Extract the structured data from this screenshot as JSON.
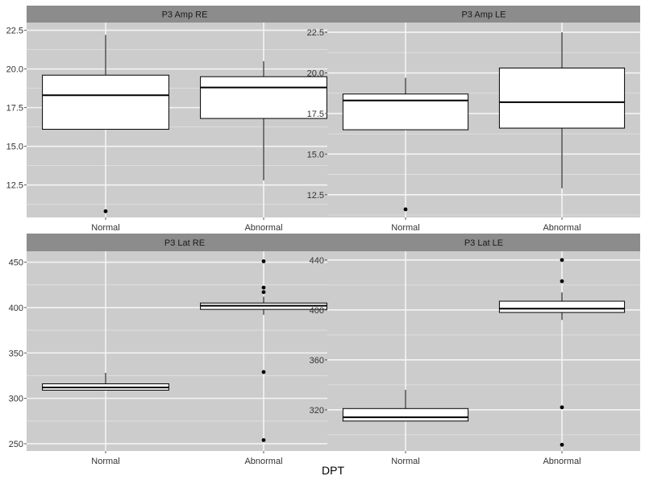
{
  "chart_data": {
    "type": "boxplot",
    "x_axis_title": "DPT",
    "facets": [
      {
        "title": "P3 Amp RE",
        "categories": [
          "Normal",
          "Abnormal"
        ],
        "yrange": [
          10.4,
          23.0
        ],
        "yticks": [
          12.5,
          15.0,
          17.5,
          20.0,
          22.5
        ],
        "ytick_labels": [
          "12.5",
          "15.0",
          "17.5",
          "20.0",
          "22.5"
        ],
        "boxes": [
          {
            "q1": 16.1,
            "median": 18.3,
            "q3": 19.6,
            "whisker_low": 16.1,
            "whisker_high": 22.2,
            "outliers": [
              10.8
            ]
          },
          {
            "q1": 16.8,
            "median": 18.8,
            "q3": 19.5,
            "whisker_low": 12.8,
            "whisker_high": 20.5,
            "outliers": []
          }
        ]
      },
      {
        "title": "P3 Amp LE",
        "categories": [
          "Normal",
          "Abnormal"
        ],
        "yrange": [
          11.1,
          23.1
        ],
        "yticks": [
          12.5,
          15.0,
          17.5,
          20.0,
          22.5
        ],
        "ytick_labels": [
          "12.5",
          "15.0",
          "17.5",
          "20.0",
          "22.5"
        ],
        "boxes": [
          {
            "q1": 16.5,
            "median": 18.3,
            "q3": 18.7,
            "whisker_low": 16.5,
            "whisker_high": 19.7,
            "outliers": [
              11.6
            ]
          },
          {
            "q1": 16.6,
            "median": 18.2,
            "q3": 20.3,
            "whisker_low": 12.9,
            "whisker_high": 22.5,
            "outliers": []
          }
        ]
      },
      {
        "title": "P3 Lat RE",
        "categories": [
          "Normal",
          "Abnormal"
        ],
        "yrange": [
          242,
          462
        ],
        "yticks": [
          250,
          300,
          350,
          400,
          450
        ],
        "ytick_labels": [
          "250",
          "300",
          "350",
          "400",
          "450"
        ],
        "boxes": [
          {
            "q1": 309,
            "median": 312,
            "q3": 316,
            "whisker_low": 309,
            "whisker_high": 328,
            "outliers": []
          },
          {
            "q1": 398,
            "median": 402,
            "q3": 405,
            "whisker_low": 392,
            "whisker_high": 412,
            "outliers": [
              451,
              422,
              417,
              329,
              254
            ]
          }
        ]
      },
      {
        "title": "P3 Lat LE",
        "categories": [
          "Normal",
          "Abnormal"
        ],
        "yrange": [
          287,
          447
        ],
        "yticks": [
          320,
          360,
          400,
          440
        ],
        "ytick_labels": [
          "320",
          "360",
          "400",
          "440"
        ],
        "boxes": [
          {
            "q1": 311,
            "median": 314,
            "q3": 321,
            "whisker_low": 311,
            "whisker_high": 336,
            "outliers": []
          },
          {
            "q1": 398,
            "median": 401,
            "q3": 407,
            "whisker_low": 392,
            "whisker_high": 414,
            "outliers": [
              440,
              423,
              322,
              292
            ]
          }
        ]
      }
    ]
  },
  "colors": {
    "panel_bg": "#cccccc",
    "strip_bg": "#8c8c8c",
    "grid_major": "#f4f4f4",
    "grid_minor": "#e2e2e2",
    "box_fill": "#ffffff",
    "box_stroke": "#000000"
  }
}
